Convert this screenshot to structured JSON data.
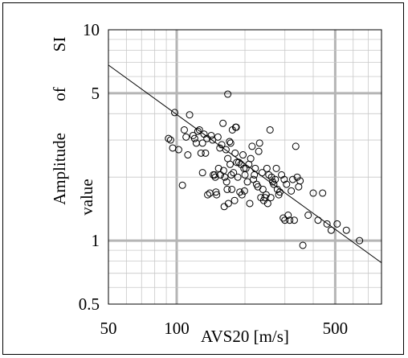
{
  "chart_data": {
    "type": "scatter",
    "title": "",
    "xlabel": "AVS20 [m/s]",
    "ylabel": [
      "Amplitude",
      "of",
      "SI",
      "value"
    ],
    "x_scale": "log",
    "y_scale": "log",
    "xlim": [
      50,
      800
    ],
    "ylim": [
      0.5,
      10
    ],
    "x_ticks": [
      {
        "value": 50,
        "label": "50"
      },
      {
        "value": 100,
        "label": "100"
      },
      {
        "value": 500,
        "label": "500"
      }
    ],
    "y_ticks": [
      {
        "value": 0.5,
        "label": "0.5"
      },
      {
        "value": 1,
        "label": "1"
      },
      {
        "value": 5,
        "label": "5"
      },
      {
        "value": 10,
        "label": "10"
      }
    ],
    "grid": true,
    "legend": "none",
    "marker": "open-circle",
    "colors": {
      "ink": "#000000",
      "grid": "#bfbfbf"
    },
    "regression_line": {
      "x": [
        50,
        800
      ],
      "y": [
        6.8,
        0.785
      ]
    },
    "points": [
      [
        92,
        3.05
      ],
      [
        94,
        3.0
      ],
      [
        96,
        2.75
      ],
      [
        98,
        4.05
      ],
      [
        102,
        2.7
      ],
      [
        106,
        1.83
      ],
      [
        108,
        3.35
      ],
      [
        110,
        3.1
      ],
      [
        112,
        2.55
      ],
      [
        114,
        3.95
      ],
      [
        118,
        3.15
      ],
      [
        120,
        3.05
      ],
      [
        122,
        2.9
      ],
      [
        124,
        3.3
      ],
      [
        126,
        3.35
      ],
      [
        128,
        2.6
      ],
      [
        130,
        2.9
      ],
      [
        130,
        2.1
      ],
      [
        132,
        3.2
      ],
      [
        134,
        2.6
      ],
      [
        136,
        3.05
      ],
      [
        137,
        1.65
      ],
      [
        140,
        1.68
      ],
      [
        142,
        3.15
      ],
      [
        144,
        3.0
      ],
      [
        145,
        2.05
      ],
      [
        147,
        2.05
      ],
      [
        148,
        2.0
      ],
      [
        149,
        1.7
      ],
      [
        150,
        1.65
      ],
      [
        152,
        3.1
      ],
      [
        153,
        2.2
      ],
      [
        155,
        2.75
      ],
      [
        156,
        2.05
      ],
      [
        158,
        2.85
      ],
      [
        160,
        3.6
      ],
      [
        161,
        2.15
      ],
      [
        162,
        1.45
      ],
      [
        163,
        2.0
      ],
      [
        165,
        2.7
      ],
      [
        166,
        1.9
      ],
      [
        167,
        1.75
      ],
      [
        168,
        4.95
      ],
      [
        168,
        2.45
      ],
      [
        169,
        1.5
      ],
      [
        171,
        2.95
      ],
      [
        172,
        2.3
      ],
      [
        173,
        2.9
      ],
      [
        174,
        2.05
      ],
      [
        175,
        1.75
      ],
      [
        176,
        3.35
      ],
      [
        178,
        2.1
      ],
      [
        180,
        1.55
      ],
      [
        181,
        2.6
      ],
      [
        182,
        3.45
      ],
      [
        183,
        3.45
      ],
      [
        184,
        2.35
      ],
      [
        186,
        2.0
      ],
      [
        188,
        2.35
      ],
      [
        190,
        1.7
      ],
      [
        192,
        2.3
      ],
      [
        194,
        1.65
      ],
      [
        196,
        2.55
      ],
      [
        198,
        2.2
      ],
      [
        199,
        1.72
      ],
      [
        200,
        2.05
      ],
      [
        202,
        2.2
      ],
      [
        205,
        1.9
      ],
      [
        208,
        2.3
      ],
      [
        210,
        1.5
      ],
      [
        212,
        2.45
      ],
      [
        215,
        2.8
      ],
      [
        218,
        1.95
      ],
      [
        220,
        2.05
      ],
      [
        222,
        2.2
      ],
      [
        225,
        1.85
      ],
      [
        228,
        1.8
      ],
      [
        230,
        2.65
      ],
      [
        232,
        2.9
      ],
      [
        235,
        1.6
      ],
      [
        238,
        2.1
      ],
      [
        240,
        1.75
      ],
      [
        242,
        1.55
      ],
      [
        245,
        1.6
      ],
      [
        248,
        1.65
      ],
      [
        250,
        2.2
      ],
      [
        252,
        1.5
      ],
      [
        255,
        2.05
      ],
      [
        258,
        3.35
      ],
      [
        260,
        1.6
      ],
      [
        262,
        2.0
      ],
      [
        265,
        1.9
      ],
      [
        268,
        1.85
      ],
      [
        272,
        1.95
      ],
      [
        275,
        2.2
      ],
      [
        278,
        1.75
      ],
      [
        282,
        1.65
      ],
      [
        285,
        1.7
      ],
      [
        290,
        2.05
      ],
      [
        295,
        1.28
      ],
      [
        298,
        1.95
      ],
      [
        300,
        1.25
      ],
      [
        305,
        1.85
      ],
      [
        310,
        1.32
      ],
      [
        315,
        1.25
      ],
      [
        320,
        1.72
      ],
      [
        325,
        1.95
      ],
      [
        330,
        1.25
      ],
      [
        335,
        2.8
      ],
      [
        340,
        2.0
      ],
      [
        345,
        1.8
      ],
      [
        350,
        1.92
      ],
      [
        360,
        0.95
      ],
      [
        380,
        1.32
      ],
      [
        400,
        1.68
      ],
      [
        420,
        1.25
      ],
      [
        440,
        1.68
      ],
      [
        460,
        1.2
      ],
      [
        480,
        1.12
      ],
      [
        510,
        1.2
      ],
      [
        560,
        1.12
      ],
      [
        640,
        1.0
      ]
    ]
  }
}
